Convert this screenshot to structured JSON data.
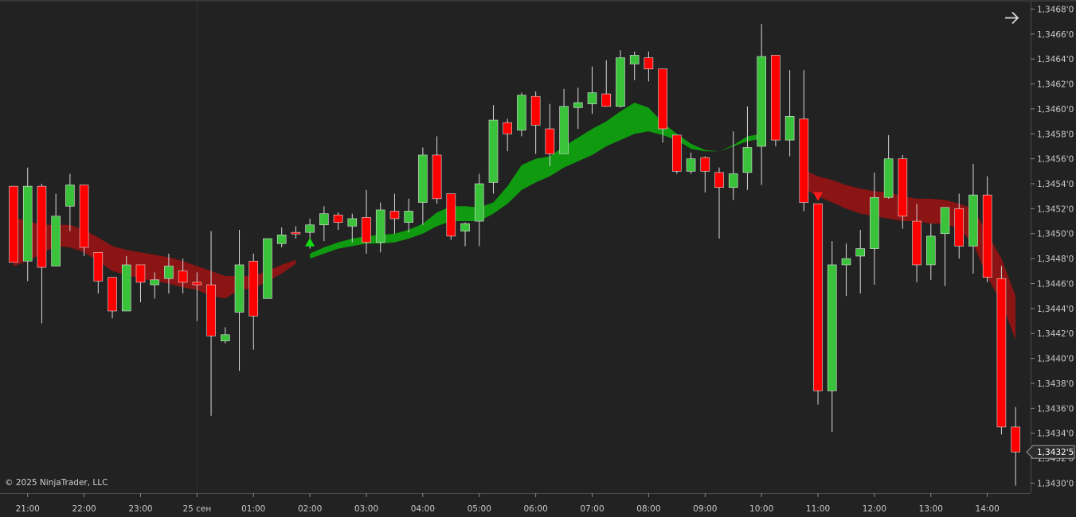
{
  "chart_data": {
    "type": "candlestick",
    "instrument_note": "",
    "copyright": "© 2025 NinjaTrader, LLC",
    "colors": {
      "background": "#222222",
      "up_candle": "#39c23a",
      "down_candle": "#ff0000",
      "wick": "#d8d8d8",
      "bull_band": "#0f9a0f",
      "bear_band": "#8b1414",
      "buy_arrow": "#11dd11",
      "sell_arrow": "#ff1a1a",
      "axis_line": "#4a4a4a",
      "tick_text": "#c8c8c8"
    },
    "x_axis": {
      "labels": [
        "21:00",
        "22:00",
        "23:00",
        "25 сен",
        "01:00",
        "02:00",
        "03:00",
        "04:00",
        "05:00",
        "06:00",
        "07:00",
        "08:00",
        "09:00",
        "10:00",
        "11:00",
        "12:00",
        "13:00",
        "14:00"
      ]
    },
    "y_axis": {
      "ylim": [
        1.34292,
        1.34686
      ],
      "ticks": [
        "1,3430'0",
        "1,3432'0",
        "1,3434'0",
        "1,3436'0",
        "1,3438'0",
        "1,3440'0",
        "1,3442'0",
        "1,3444'0",
        "1,3446'0",
        "1,3448'0",
        "1,3450'0",
        "1,3452'0",
        "1,3454'0",
        "1,3456'0",
        "1,3458'0",
        "1,3460'0",
        "1,3462'0",
        "1,3464'0",
        "1,3466'0",
        "1,3468'0"
      ],
      "tick_values": [
        1.343,
        1.3432,
        1.3434,
        1.3436,
        1.3438,
        1.344,
        1.3442,
        1.3444,
        1.3446,
        1.3448,
        1.345,
        1.3452,
        1.3454,
        1.3456,
        1.3458,
        1.346,
        1.3462,
        1.3464,
        1.3466,
        1.3468
      ],
      "last_price_label": "1,3432'5",
      "last_price": 1.34325
    },
    "candles": [
      {
        "o": 1.34538,
        "h": 1.34538,
        "l": 1.34477,
        "c": 1.34477
      },
      {
        "o": 1.34478,
        "h": 1.34553,
        "l": 1.34462,
        "c": 1.34538
      },
      {
        "o": 1.34538,
        "h": 1.3454,
        "l": 1.34428,
        "c": 1.34473
      },
      {
        "o": 1.34474,
        "h": 1.34532,
        "l": 1.34474,
        "c": 1.34514
      },
      {
        "o": 1.34522,
        "h": 1.34548,
        "l": 1.34502,
        "c": 1.34539
      },
      {
        "o": 1.34539,
        "h": 1.34539,
        "l": 1.34482,
        "c": 1.34489
      },
      {
        "o": 1.34485,
        "h": 1.34485,
        "l": 1.34452,
        "c": 1.34462
      },
      {
        "o": 1.34465,
        "h": 1.34465,
        "l": 1.34432,
        "c": 1.34438
      },
      {
        "o": 1.34438,
        "h": 1.34482,
        "l": 1.34438,
        "c": 1.34475
      },
      {
        "o": 1.34475,
        "h": 1.34475,
        "l": 1.34445,
        "c": 1.34461
      },
      {
        "o": 1.34459,
        "h": 1.34469,
        "l": 1.34448,
        "c": 1.34463
      },
      {
        "o": 1.34464,
        "h": 1.34484,
        "l": 1.34452,
        "c": 1.34474
      },
      {
        "o": 1.3447,
        "h": 1.3448,
        "l": 1.34452,
        "c": 1.34461
      },
      {
        "o": 1.34461,
        "h": 1.34469,
        "l": 1.3443,
        "c": 1.34459
      },
      {
        "o": 1.34459,
        "h": 1.34502,
        "l": 1.34354,
        "c": 1.34418
      },
      {
        "o": 1.34414,
        "h": 1.34425,
        "l": 1.34412,
        "c": 1.34419
      },
      {
        "o": 1.34437,
        "h": 1.34503,
        "l": 1.3439,
        "c": 1.34475
      },
      {
        "o": 1.34478,
        "h": 1.34484,
        "l": 1.34407,
        "c": 1.34434
      },
      {
        "o": 1.34448,
        "h": 1.34496,
        "l": 1.34448,
        "c": 1.34496
      },
      {
        "o": 1.34492,
        "h": 1.34505,
        "l": 1.34489,
        "c": 1.34499
      },
      {
        "o": 1.34501,
        "h": 1.34506,
        "l": 1.34496,
        "c": 1.345
      },
      {
        "o": 1.34501,
        "h": 1.34512,
        "l": 1.34488,
        "c": 1.34507
      },
      {
        "o": 1.34507,
        "h": 1.34522,
        "l": 1.34494,
        "c": 1.34516
      },
      {
        "o": 1.34515,
        "h": 1.34517,
        "l": 1.34503,
        "c": 1.34509
      },
      {
        "o": 1.34506,
        "h": 1.34516,
        "l": 1.34493,
        "c": 1.34512
      },
      {
        "o": 1.34513,
        "h": 1.34535,
        "l": 1.34484,
        "c": 1.34493
      },
      {
        "o": 1.34493,
        "h": 1.34525,
        "l": 1.34485,
        "c": 1.34519
      },
      {
        "o": 1.34518,
        "h": 1.34532,
        "l": 1.345,
        "c": 1.34512
      },
      {
        "o": 1.34509,
        "h": 1.34528,
        "l": 1.34501,
        "c": 1.34518
      },
      {
        "o": 1.34525,
        "h": 1.34569,
        "l": 1.34507,
        "c": 1.34563
      },
      {
        "o": 1.34563,
        "h": 1.34578,
        "l": 1.34524,
        "c": 1.34528
      },
      {
        "o": 1.34532,
        "h": 1.34532,
        "l": 1.34495,
        "c": 1.34498
      },
      {
        "o": 1.34502,
        "h": 1.34509,
        "l": 1.3449,
        "c": 1.34508
      },
      {
        "o": 1.3451,
        "h": 1.34548,
        "l": 1.3449,
        "c": 1.3454
      },
      {
        "o": 1.34541,
        "h": 1.34603,
        "l": 1.34532,
        "c": 1.34591
      },
      {
        "o": 1.34589,
        "h": 1.34592,
        "l": 1.34566,
        "c": 1.3458
      },
      {
        "o": 1.34583,
        "h": 1.34613,
        "l": 1.34578,
        "c": 1.34611
      },
      {
        "o": 1.3461,
        "h": 1.34614,
        "l": 1.34564,
        "c": 1.34587
      },
      {
        "o": 1.34584,
        "h": 1.34604,
        "l": 1.34554,
        "c": 1.34564
      },
      {
        "o": 1.34564,
        "h": 1.34616,
        "l": 1.34564,
        "c": 1.34602
      },
      {
        "o": 1.34601,
        "h": 1.34617,
        "l": 1.34584,
        "c": 1.34605
      },
      {
        "o": 1.34604,
        "h": 1.34634,
        "l": 1.34596,
        "c": 1.34613
      },
      {
        "o": 1.34612,
        "h": 1.34639,
        "l": 1.34603,
        "c": 1.34602
      },
      {
        "o": 1.34602,
        "h": 1.34647,
        "l": 1.34601,
        "c": 1.34641
      },
      {
        "o": 1.34636,
        "h": 1.34646,
        "l": 1.34623,
        "c": 1.34643
      },
      {
        "o": 1.34641,
        "h": 1.34646,
        "l": 1.34622,
        "c": 1.34632
      },
      {
        "o": 1.34632,
        "h": 1.34632,
        "l": 1.34573,
        "c": 1.34584
      },
      {
        "o": 1.34579,
        "h": 1.34579,
        "l": 1.34548,
        "c": 1.3455
      },
      {
        "o": 1.3455,
        "h": 1.34565,
        "l": 1.34548,
        "c": 1.3456
      },
      {
        "o": 1.34561,
        "h": 1.34562,
        "l": 1.34533,
        "c": 1.3455
      },
      {
        "o": 1.34549,
        "h": 1.34553,
        "l": 1.34496,
        "c": 1.34537
      },
      {
        "o": 1.34537,
        "h": 1.34582,
        "l": 1.34527,
        "c": 1.34548
      },
      {
        "o": 1.34549,
        "h": 1.34602,
        "l": 1.34535,
        "c": 1.34569
      },
      {
        "o": 1.3457,
        "h": 1.34668,
        "l": 1.34539,
        "c": 1.34642
      },
      {
        "o": 1.34643,
        "h": 1.34643,
        "l": 1.3457,
        "c": 1.34575
      },
      {
        "o": 1.34575,
        "h": 1.34631,
        "l": 1.34562,
        "c": 1.34594
      },
      {
        "o": 1.34592,
        "h": 1.34631,
        "l": 1.34518,
        "c": 1.34525
      },
      {
        "o": 1.34524,
        "h": 1.34524,
        "l": 1.34363,
        "c": 1.34374
      },
      {
        "o": 1.34374,
        "h": 1.34494,
        "l": 1.34341,
        "c": 1.34475
      },
      {
        "o": 1.34475,
        "h": 1.34492,
        "l": 1.3445,
        "c": 1.3448
      },
      {
        "o": 1.34482,
        "h": 1.34503,
        "l": 1.34452,
        "c": 1.34488
      },
      {
        "o": 1.34488,
        "h": 1.34549,
        "l": 1.34459,
        "c": 1.34529
      },
      {
        "o": 1.34529,
        "h": 1.34579,
        "l": 1.34528,
        "c": 1.3456
      },
      {
        "o": 1.3456,
        "h": 1.34563,
        "l": 1.34504,
        "c": 1.34514
      },
      {
        "o": 1.3451,
        "h": 1.34524,
        "l": 1.34461,
        "c": 1.34475
      },
      {
        "o": 1.34475,
        "h": 1.34508,
        "l": 1.34463,
        "c": 1.34498
      },
      {
        "o": 1.345,
        "h": 1.34521,
        "l": 1.34458,
        "c": 1.34521
      },
      {
        "o": 1.3452,
        "h": 1.34532,
        "l": 1.3448,
        "c": 1.3449
      },
      {
        "o": 1.3449,
        "h": 1.34556,
        "l": 1.34468,
        "c": 1.34531
      },
      {
        "o": 1.34531,
        "h": 1.34546,
        "l": 1.34461,
        "c": 1.34465
      },
      {
        "o": 1.34464,
        "h": 1.34474,
        "l": 1.34339,
        "c": 1.34345
      },
      {
        "o": 1.34345,
        "h": 1.34361,
        "l": 1.34298,
        "c": 1.34325
      }
    ],
    "bands": [
      {
        "kind": "bear",
        "start": 0,
        "upper": [
          1.34513,
          1.3451,
          1.34507,
          1.34507,
          1.34507,
          1.34503,
          1.34497,
          1.3449,
          1.34487,
          1.34485,
          1.34483,
          1.34481,
          1.34478,
          1.34474,
          1.3447,
          1.34466,
          1.34466,
          1.34466,
          1.3447,
          1.34475,
          1.34479
        ],
        "lower": [
          1.34474,
          1.34478,
          1.34484,
          1.3449,
          1.34489,
          1.34485,
          1.34478,
          1.3447,
          1.34467,
          1.34464,
          1.34462,
          1.3446,
          1.34457,
          1.34455,
          1.3445,
          1.34448,
          1.34455,
          1.34456,
          1.34462,
          1.34468,
          1.34476
        ]
      },
      {
        "kind": "bull",
        "start": 21,
        "upper": [
          1.34484,
          1.34489,
          1.34493,
          1.34496,
          1.34498,
          1.34499,
          1.345,
          1.34503,
          1.34508,
          1.34517,
          1.34522,
          1.34522,
          1.34521,
          1.34525,
          1.34538,
          1.34555,
          1.3456,
          1.34562,
          1.3457,
          1.34577,
          1.34584,
          1.3459,
          1.34598,
          1.34605,
          1.34601,
          1.34589,
          1.3458,
          1.34572,
          1.34567,
          1.34566,
          1.34571,
          1.34578,
          1.3458
        ],
        "lower": [
          1.3448,
          1.34484,
          1.34488,
          1.3449,
          1.34492,
          1.34492,
          1.34493,
          1.34496,
          1.345,
          1.34506,
          1.3451,
          1.3451,
          1.3451,
          1.34516,
          1.34524,
          1.34535,
          1.34541,
          1.34546,
          1.34553,
          1.34558,
          1.34563,
          1.3457,
          1.34575,
          1.3458,
          1.34582,
          1.34579,
          1.34575,
          1.34568,
          1.34566,
          1.34566,
          1.3457,
          1.34574,
          1.34576
        ]
      },
      {
        "kind": "bear",
        "start": 56,
        "upper": [
          1.34551,
          1.34546,
          1.34543,
          1.34539,
          1.34536,
          1.34534,
          1.34533,
          1.3453,
          1.34528,
          1.34528,
          1.34527,
          1.34524,
          1.3452,
          1.345,
          1.3448,
          1.3445
        ],
        "lower": [
          1.34536,
          1.3453,
          1.34525,
          1.3452,
          1.34516,
          1.34514,
          1.34512,
          1.3451,
          1.3451,
          1.34508,
          1.34508,
          1.34504,
          1.34492,
          1.34465,
          1.34445,
          1.34415
        ]
      }
    ],
    "signals": [
      {
        "index": 21,
        "type": "buy",
        "price": 1.34493
      },
      {
        "index": 57,
        "type": "sell",
        "price": 1.3453
      }
    ]
  }
}
